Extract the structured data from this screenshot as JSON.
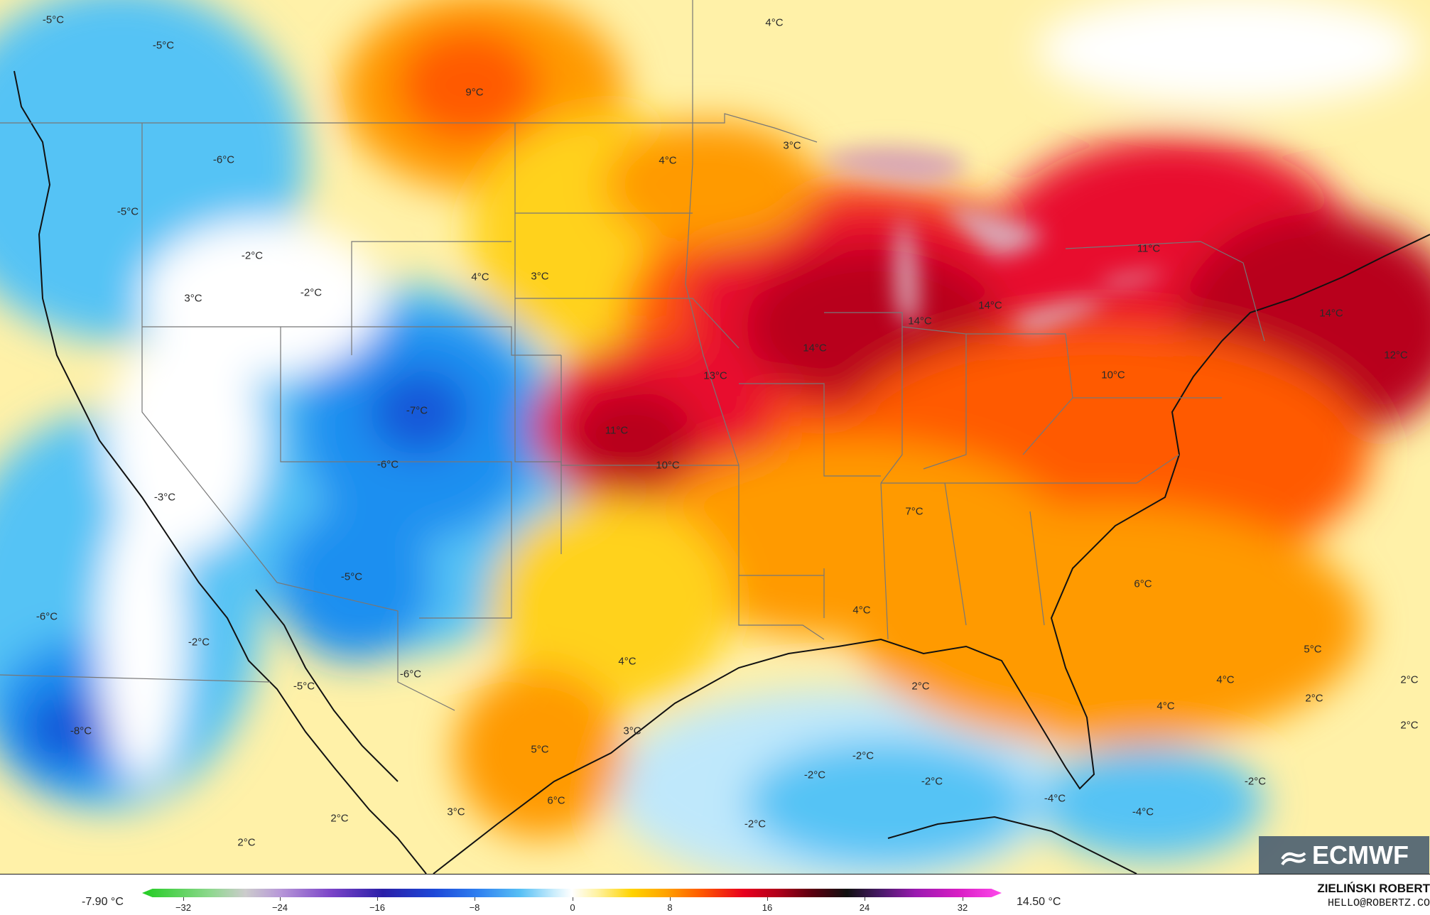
{
  "map": {
    "colors": {
      "zero": "#ffffff",
      "warm_light": "#fff1a8",
      "warm_yellow": "#ffd21f",
      "warm_orange": "#ff9a00",
      "warm_deep_orange": "#ff5a00",
      "warm_red": "#e8102e",
      "warm_dark_red": "#b8001c",
      "cold_light": "#bfe8fb",
      "cold_sky": "#55c3f5",
      "cold_blue": "#1f8ff0",
      "cold_deep_blue": "#1256d8",
      "lakes": "#d9a7b6"
    },
    "labels": [
      {
        "text": "-5°C"
      },
      {
        "text": "-5°C"
      },
      {
        "text": "9°C"
      },
      {
        "text": "4°C"
      },
      {
        "text": "-6°C"
      },
      {
        "text": "4°C"
      },
      {
        "text": "3°C"
      },
      {
        "text": "-5°C"
      },
      {
        "text": "-2°C"
      },
      {
        "text": "3°C"
      },
      {
        "text": "-2°C"
      },
      {
        "text": "4°C"
      },
      {
        "text": "3°C"
      },
      {
        "text": "11°C"
      },
      {
        "text": "14°C"
      },
      {
        "text": "14°C"
      },
      {
        "text": "14°C"
      },
      {
        "text": "14°C"
      },
      {
        "text": "13°C"
      },
      {
        "text": "10°C"
      },
      {
        "text": "12°C"
      },
      {
        "text": "-7°C"
      },
      {
        "text": "11°C"
      },
      {
        "text": "-6°C"
      },
      {
        "text": "10°C"
      },
      {
        "text": "-3°C"
      },
      {
        "text": "7°C"
      },
      {
        "text": "-5°C"
      },
      {
        "text": "6°C"
      },
      {
        "text": "-6°C"
      },
      {
        "text": "4°C"
      },
      {
        "text": "-2°C"
      },
      {
        "text": "4°C"
      },
      {
        "text": "5°C"
      },
      {
        "text": "-6°C"
      },
      {
        "text": "-5°C"
      },
      {
        "text": "2°C"
      },
      {
        "text": "4°C"
      },
      {
        "text": "2°C"
      },
      {
        "text": "-8°C"
      },
      {
        "text": "4°C"
      },
      {
        "text": "2°C"
      },
      {
        "text": "3°C"
      },
      {
        "text": "2°C"
      },
      {
        "text": "5°C"
      },
      {
        "text": "-2°C"
      },
      {
        "text": "-2°C"
      },
      {
        "text": "-2°C"
      },
      {
        "text": "-2°C"
      },
      {
        "text": "6°C"
      },
      {
        "text": "2°C"
      },
      {
        "text": "-4°C"
      },
      {
        "text": "-4°C"
      },
      {
        "text": "3°C"
      },
      {
        "text": "-2°C"
      },
      {
        "text": "2°C"
      }
    ]
  },
  "logo": {
    "text": "ECMWF",
    "icon": "ecmwf-logo-icon"
  },
  "legend": {
    "min_label": "-7.90 °C",
    "max_label": "14.50 °C",
    "ticks": [
      "−32",
      "−24",
      "−16",
      "−8",
      "0",
      "8",
      "16",
      "24",
      "32"
    ]
  },
  "credits": {
    "name": "ZIELIŃSKI ROBERT",
    "email": "HELLO@ROBERTZ.CO"
  }
}
